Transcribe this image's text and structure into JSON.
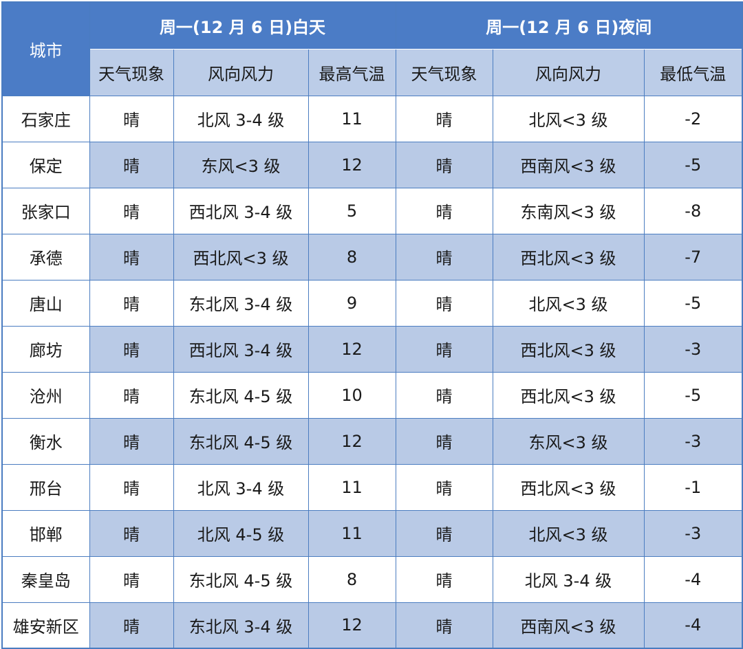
{
  "header": {
    "city_label": "城市",
    "day_title": "周一(12 月 6 日)白天",
    "night_title": "周一(12 月 6 日)夜间",
    "day_columns": [
      "天气现象",
      "风向风力",
      "最高气温"
    ],
    "night_columns": [
      "天气现象",
      "风向风力",
      "最低气温"
    ]
  },
  "rows": [
    {
      "city": "石家庄",
      "day_weather": "晴",
      "day_wind": "北风 3-4 级",
      "high": "11",
      "night_weather": "晴",
      "night_wind": "北风<3 级",
      "low": "-2"
    },
    {
      "city": "保定",
      "day_weather": "晴",
      "day_wind": "东风<3 级",
      "high": "12",
      "night_weather": "晴",
      "night_wind": "西南风<3 级",
      "low": "-5"
    },
    {
      "city": "张家口",
      "day_weather": "晴",
      "day_wind": "西北风 3-4 级",
      "high": "5",
      "night_weather": "晴",
      "night_wind": "东南风<3 级",
      "low": "-8"
    },
    {
      "city": "承德",
      "day_weather": "晴",
      "day_wind": "西北风<3 级",
      "high": "8",
      "night_weather": "晴",
      "night_wind": "西北风<3 级",
      "low": "-7"
    },
    {
      "city": "唐山",
      "day_weather": "晴",
      "day_wind": "东北风 3-4 级",
      "high": "9",
      "night_weather": "晴",
      "night_wind": "北风<3 级",
      "low": "-5"
    },
    {
      "city": "廊坊",
      "day_weather": "晴",
      "day_wind": "西北风 3-4 级",
      "high": "12",
      "night_weather": "晴",
      "night_wind": "西北风<3 级",
      "low": "-3"
    },
    {
      "city": "沧州",
      "day_weather": "晴",
      "day_wind": "东北风 4-5 级",
      "high": "10",
      "night_weather": "晴",
      "night_wind": "西北风<3 级",
      "low": "-5"
    },
    {
      "city": "衡水",
      "day_weather": "晴",
      "day_wind": "东北风 4-5 级",
      "high": "12",
      "night_weather": "晴",
      "night_wind": "东风<3 级",
      "low": "-3"
    },
    {
      "city": "邢台",
      "day_weather": "晴",
      "day_wind": "北风 3-4 级",
      "high": "11",
      "night_weather": "晴",
      "night_wind": "西北风<3 级",
      "low": "-1"
    },
    {
      "city": "邯郸",
      "day_weather": "晴",
      "day_wind": "北风 4-5 级",
      "high": "11",
      "night_weather": "晴",
      "night_wind": "北风<3 级",
      "low": "-3"
    },
    {
      "city": "秦皇岛",
      "day_weather": "晴",
      "day_wind": "东北风 4-5 级",
      "high": "8",
      "night_weather": "晴",
      "night_wind": "北风 3-4 级",
      "low": "-4"
    },
    {
      "city": "雄安新区",
      "day_weather": "晴",
      "day_wind": "东北风 3-4 级",
      "high": "12",
      "night_weather": "晴",
      "night_wind": "西南风<3 级",
      "low": "-4"
    }
  ],
  "colors": {
    "header_blue": "#4b7cc6",
    "subheader": "#bccde8",
    "stripe": "#b9cae6",
    "border": "#4a7cc0"
  }
}
